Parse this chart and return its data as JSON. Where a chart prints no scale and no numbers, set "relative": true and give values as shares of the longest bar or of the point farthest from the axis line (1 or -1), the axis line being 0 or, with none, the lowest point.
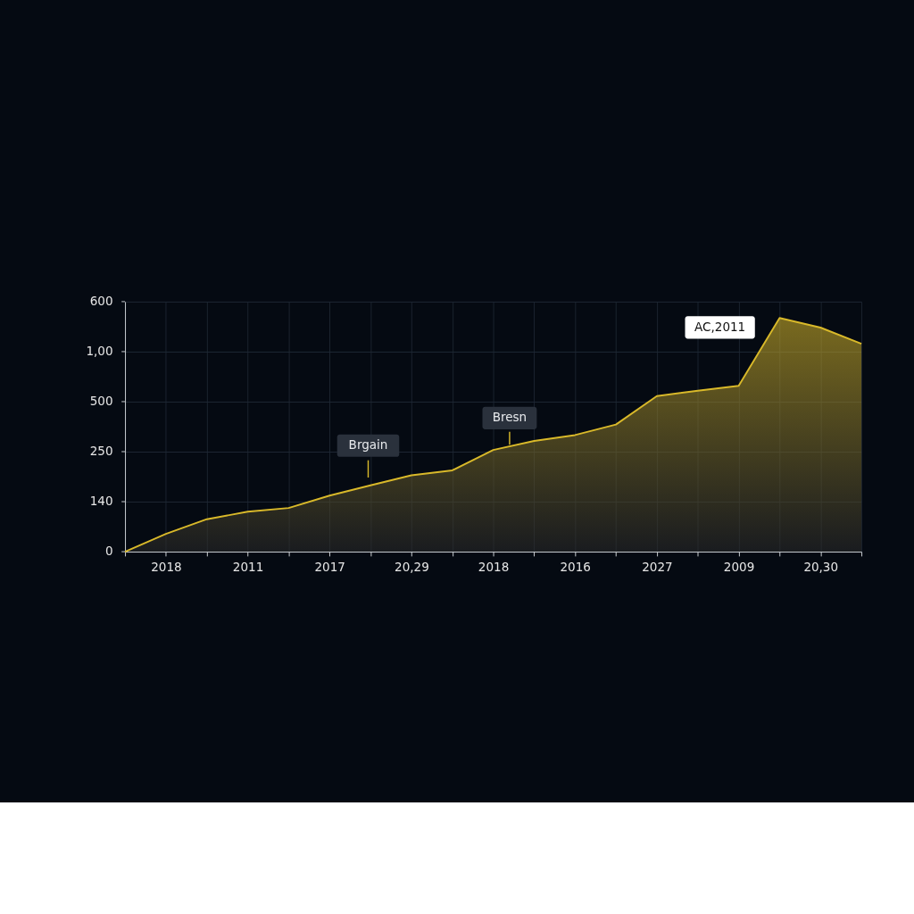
{
  "chart_data": {
    "type": "area",
    "relative": true,
    "categories": [
      null,
      "2018",
      null,
      "2011",
      null,
      "2017",
      null,
      "20,29",
      null,
      "2018",
      null,
      "2016",
      null,
      "2027",
      null,
      "2009",
      null,
      "20,30",
      null
    ],
    "series": [
      {
        "color": "#d9b92a",
        "values": [
          0,
          0.076,
          0.139,
          0.171,
          0.187,
          0.24,
          0.284,
          0.327,
          0.348,
          0.435,
          0.474,
          0.499,
          0.544,
          0.666,
          0.689,
          0.71,
          1,
          0.959,
          0.89
        ]
      }
    ],
    "grid": true,
    "annotations": [
      "600",
      "1,00",
      "500",
      "250",
      "140",
      "0",
      "Brgain",
      "Bresn",
      "AC,2011"
    ]
  }
}
